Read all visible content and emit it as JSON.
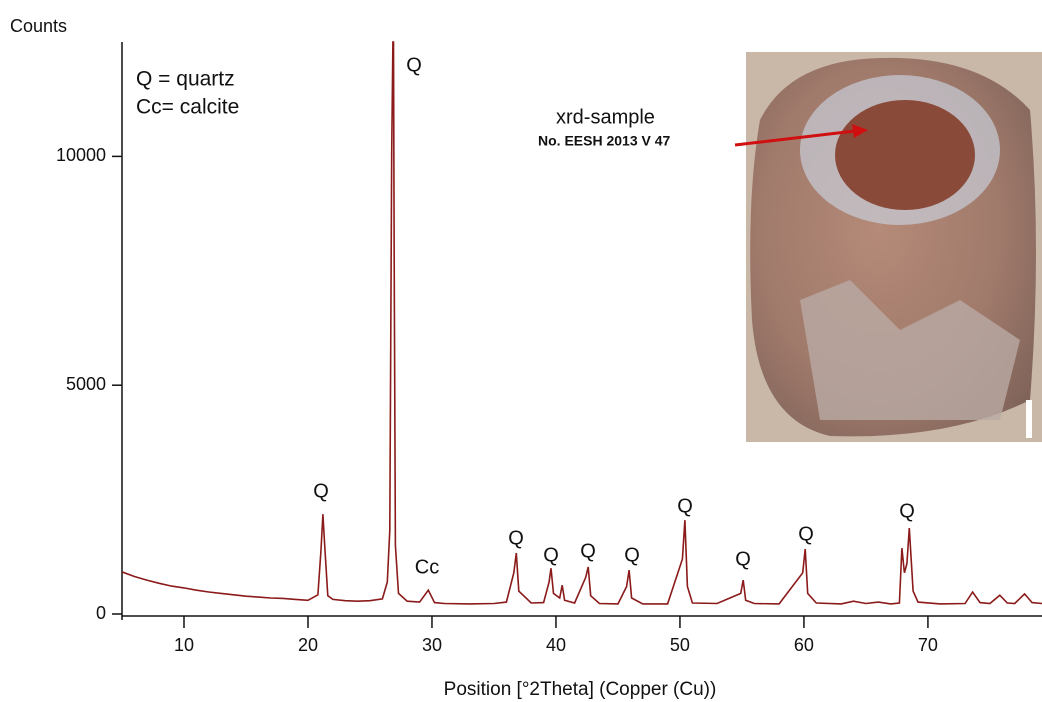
{
  "chart_data": {
    "type": "line",
    "y_axis_label": "Counts",
    "x_axis_label": "Position [°2Theta] (Copper (Cu))",
    "legend_text": [
      "Q = quartz",
      "Cc= calcite"
    ],
    "annotations": [
      "Q",
      "Q",
      "Cc",
      "Q",
      "Q",
      "Q",
      "Q",
      "Q",
      "Q",
      "Q",
      "Q"
    ],
    "inset_labels": [
      "xrd-sample",
      "No. EESH 2013 V 47"
    ],
    "color": "#8b1a1a",
    "xlim": [
      5,
      79.2
    ],
    "ylim": [
      0,
      12500
    ],
    "xticks": [
      10,
      20,
      30,
      40,
      50,
      60,
      70
    ],
    "yticks": [
      0,
      5000,
      10000
    ],
    "x": [
      5,
      6,
      7,
      8,
      9,
      10,
      11,
      12,
      13,
      14,
      15,
      16,
      17,
      18,
      19,
      20,
      20.8,
      21.05,
      21.2,
      21.35,
      21.6,
      22,
      23,
      24,
      25,
      26,
      26.4,
      26.6,
      26.75,
      26.85,
      26.9,
      26.95,
      27.05,
      27.3,
      28,
      29,
      29.7,
      30.2,
      31,
      33,
      35,
      36,
      36.6,
      36.8,
      37,
      38,
      39,
      39.45,
      39.6,
      39.8,
      40.3,
      40.5,
      40.7,
      41.5,
      42.4,
      42.6,
      42.8,
      43.5,
      45,
      45.7,
      45.9,
      46.1,
      47,
      49,
      50.2,
      50.4,
      50.6,
      51,
      53,
      54.9,
      55.1,
      55.3,
      56,
      58,
      59.9,
      60.1,
      60.3,
      61,
      63,
      64,
      65,
      66,
      67,
      67.7,
      67.9,
      68.1,
      68.3,
      68.5,
      68.8,
      69.2,
      71,
      73,
      73.6,
      74.2,
      75,
      75.8,
      76.4,
      77,
      77.8,
      78.4,
      79.2
    ],
    "values": [
      920,
      820,
      740,
      670,
      610,
      570,
      520,
      480,
      450,
      420,
      390,
      370,
      350,
      340,
      320,
      300,
      420,
      1400,
      2180,
      1500,
      400,
      320,
      290,
      280,
      290,
      330,
      700,
      1830,
      10100,
      12500,
      12500,
      7700,
      1500,
      450,
      280,
      260,
      520,
      250,
      230,
      220,
      230,
      260,
      900,
      1330,
      500,
      240,
      250,
      700,
      1000,
      450,
      350,
      630,
      300,
      240,
      800,
      1030,
      400,
      230,
      220,
      600,
      960,
      350,
      220,
      220,
      1200,
      2050,
      600,
      240,
      230,
      450,
      740,
      300,
      230,
      220,
      900,
      1420,
      450,
      240,
      220,
      280,
      230,
      260,
      220,
      240,
      1440,
      900,
      1100,
      1880,
      500,
      260,
      220,
      230,
      480,
      250,
      230,
      410,
      240,
      230,
      440,
      250,
      230
    ]
  }
}
